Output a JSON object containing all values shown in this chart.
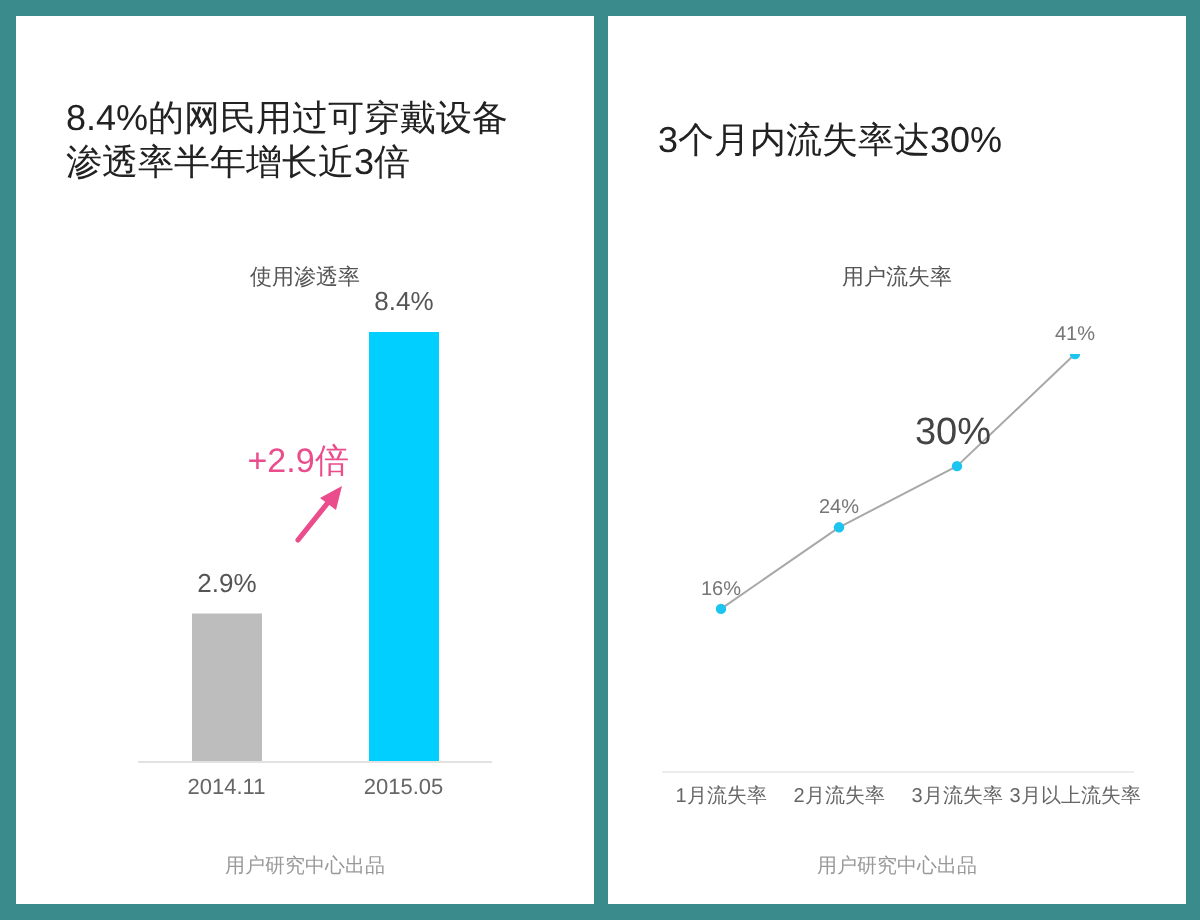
{
  "chart_data": [
    {
      "type": "bar",
      "title": "8.4%的网民用过可穿戴设备渗透率半年增长近3倍",
      "subtitle": "使用渗透率",
      "categories": [
        "2014.11",
        "2015.05"
      ],
      "values": [
        2.9,
        8.4
      ],
      "colors": [
        "#bdbdbd",
        "#00cfff"
      ],
      "value_labels": [
        "2.9%",
        "8.4%"
      ],
      "tick_labels": "x",
      "annotations": [
        "+2.9倍",
        "用户研究中心出品"
      ]
    },
    {
      "type": "line",
      "title": "3个月内流失率达30%",
      "subtitle": "用户流失率",
      "categories": [
        "1月流失率",
        "2月流失率",
        "3月流失率",
        "3月以上流失率"
      ],
      "values": [
        16,
        24,
        30,
        41
      ],
      "color": "#a8a8a8",
      "colors": [
        "#1cc4f0",
        "#1cc4f0",
        "#1cc4f0",
        "#1cc4f0"
      ],
      "marker": "circle",
      "value_labels": [
        "16%",
        "24%",
        null,
        "41%"
      ],
      "tick_labels": "x",
      "annotations": [
        {
          "text": "30%",
          "x": "3月流失率",
          "y": 30
        },
        "用户研究中心出品"
      ]
    }
  ]
}
